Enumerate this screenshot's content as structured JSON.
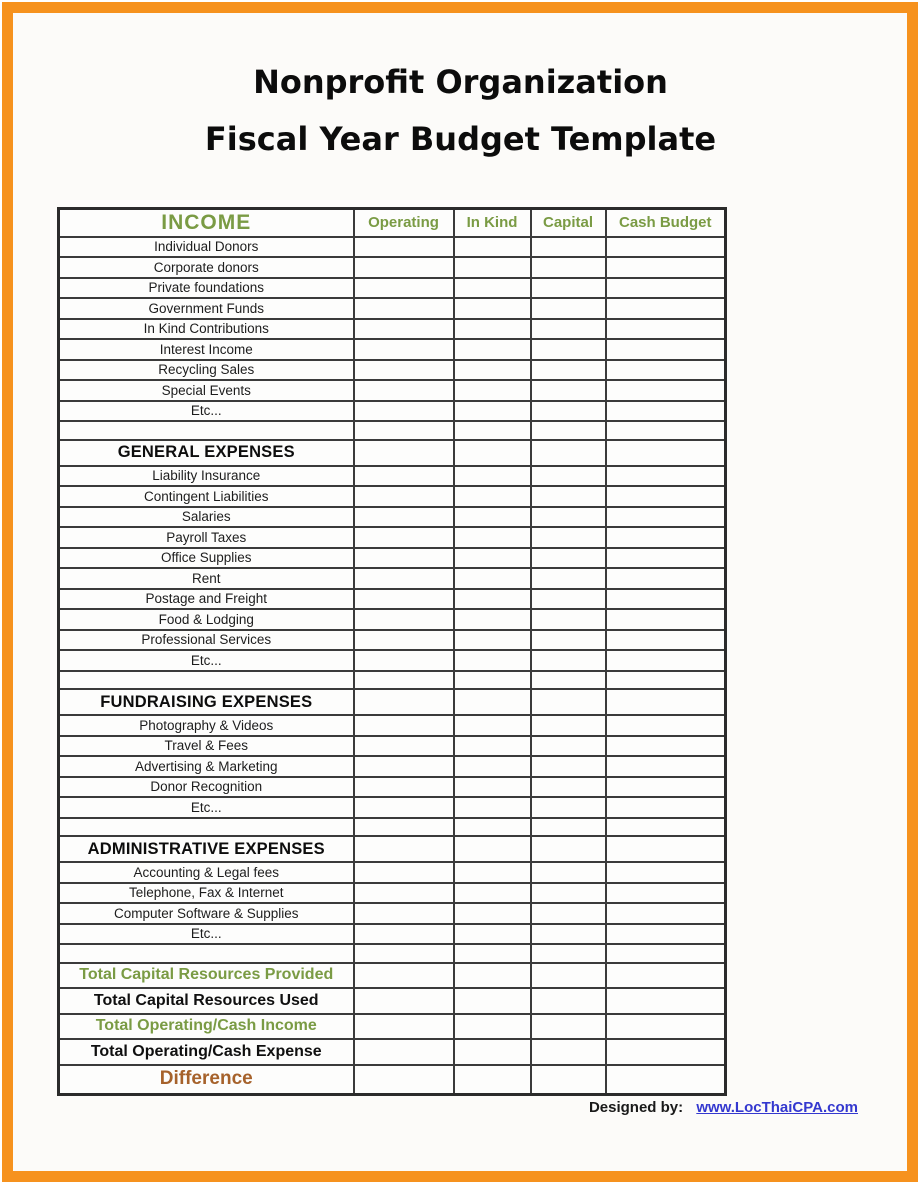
{
  "title": {
    "line1": "Nonprofit Organization",
    "line2": "Fiscal Year Budget Template"
  },
  "table": {
    "income_header": "INCOME",
    "columns": [
      "Operating",
      "In Kind",
      "Capital",
      "Cash Budget"
    ],
    "income_rows": [
      "Individual Donors",
      "Corporate donors",
      "Private foundations",
      "Government Funds",
      "In Kind Contributions",
      "Interest Income",
      "Recycling Sales",
      "Special Events",
      "Etc..."
    ],
    "general_header": "GENERAL EXPENSES",
    "general_rows": [
      "Liability Insurance",
      "Contingent Liabilities",
      "Salaries",
      "Payroll Taxes",
      "Office Supplies",
      "Rent",
      "Postage and Freight",
      "Food & Lodging",
      "Professional Services",
      "Etc..."
    ],
    "fundraising_header": "FUNDRAISING EXPENSES",
    "fundraising_rows": [
      "Photography & Videos",
      "Travel & Fees",
      "Advertising & Marketing",
      "Donor Recognition",
      "Etc..."
    ],
    "admin_header": "ADMINISTRATIVE EXPENSES",
    "admin_rows": [
      "Accounting & Legal fees",
      "Telephone, Fax & Internet",
      "Computer Software & Supplies",
      "Etc..."
    ],
    "totals": {
      "capital_provided": "Total Capital Resources Provided",
      "capital_used": "Total Capital Resources Used",
      "operating_income": "Total Operating/Cash Income",
      "operating_expense": "Total Operating/Cash Expense",
      "difference": "Difference"
    }
  },
  "footer": {
    "designed_by_label": "Designed by:",
    "designed_by_link": "www.LocThaiCPA.com"
  },
  "colors": {
    "accent_green": "#7a9b44",
    "frame_orange": "#f6921e",
    "difference_brown": "#a6622b",
    "link_blue": "#3438cf"
  }
}
